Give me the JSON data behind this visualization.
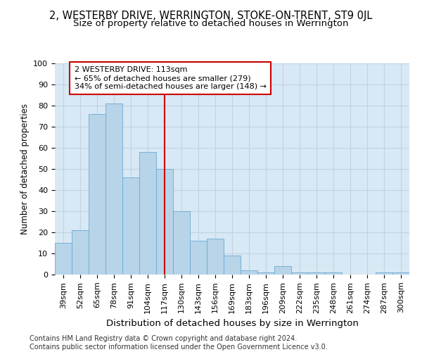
{
  "title": "2, WESTERBY DRIVE, WERRINGTON, STOKE-ON-TRENT, ST9 0JL",
  "subtitle": "Size of property relative to detached houses in Werrington",
  "xlabel": "Distribution of detached houses by size in Werrington",
  "ylabel": "Number of detached properties",
  "categories": [
    "39sqm",
    "52sqm",
    "65sqm",
    "78sqm",
    "91sqm",
    "104sqm",
    "117sqm",
    "130sqm",
    "143sqm",
    "156sqm",
    "169sqm",
    "183sqm",
    "196sqm",
    "209sqm",
    "222sqm",
    "235sqm",
    "248sqm",
    "261sqm",
    "274sqm",
    "287sqm",
    "300sqm"
  ],
  "values": [
    15,
    21,
    76,
    81,
    46,
    58,
    50,
    30,
    16,
    17,
    9,
    2,
    1,
    4,
    1,
    1,
    1,
    0,
    0,
    1,
    1
  ],
  "bar_color": "#b8d4e8",
  "bar_edge_color": "#6aaad4",
  "vline_x_index": 6,
  "vline_color": "#cc0000",
  "annotation_text": "2 WESTERBY DRIVE: 113sqm\n← 65% of detached houses are smaller (279)\n34% of semi-detached houses are larger (148) →",
  "annotation_box_color": "#ffffff",
  "annotation_box_edge_color": "#cc0000",
  "ylim": [
    0,
    100
  ],
  "yticks": [
    0,
    10,
    20,
    30,
    40,
    50,
    60,
    70,
    80,
    90,
    100
  ],
  "grid_color": "#c0d4e4",
  "bg_color": "#d8e8f4",
  "footer": "Contains HM Land Registry data © Crown copyright and database right 2024.\nContains public sector information licensed under the Open Government Licence v3.0.",
  "title_fontsize": 10.5,
  "subtitle_fontsize": 9.5,
  "xlabel_fontsize": 9.5,
  "ylabel_fontsize": 8.5,
  "tick_fontsize": 8,
  "annotation_fontsize": 8,
  "footer_fontsize": 7
}
